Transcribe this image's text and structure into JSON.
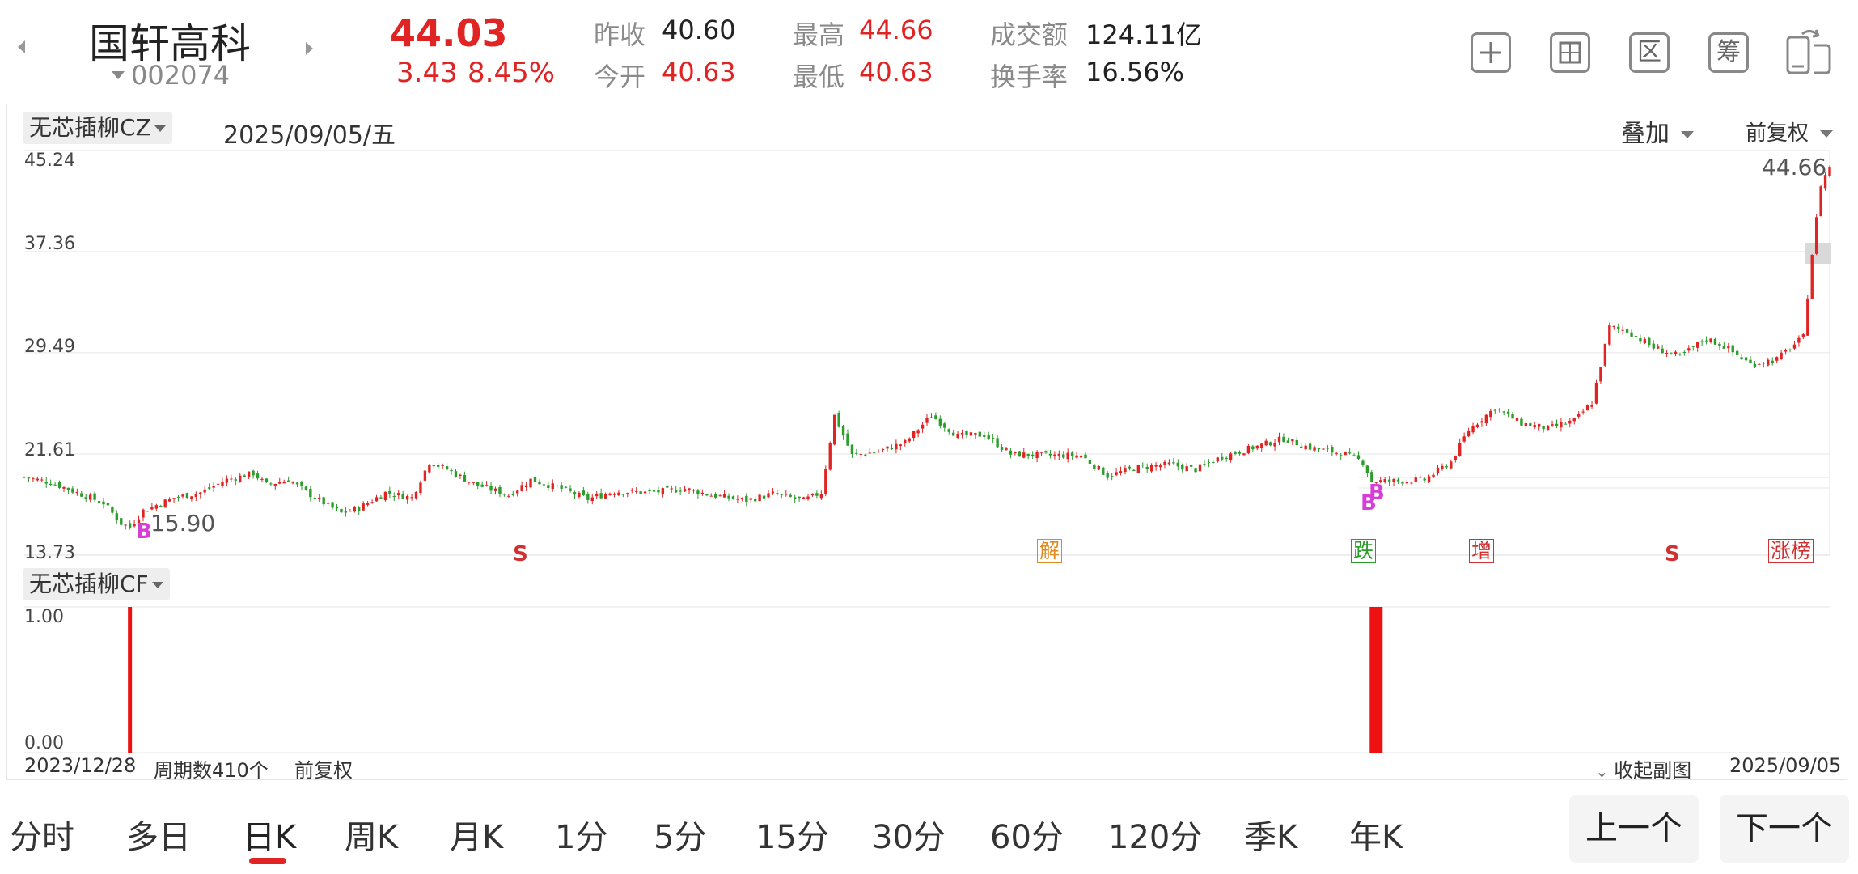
{
  "stock": {
    "name": "国轩高科",
    "code": "002074",
    "price": "44.03",
    "change": "3.43",
    "change_pct": "8.45%",
    "prev_close_label": "昨收",
    "prev_close": "40.60",
    "open_label": "今开",
    "open": "40.63",
    "high_label": "最高",
    "high": "44.66",
    "low_label": "最低",
    "low": "40.63",
    "amount_label": "成交额",
    "amount": "124.11亿",
    "turnover_label": "换手率",
    "turnover": "16.56%"
  },
  "toolbar": {
    "icons": [
      "plus-square-icon",
      "drawing-icon",
      "range-icon",
      "chip-icon",
      "device-switch-icon"
    ],
    "range_glyph": "区",
    "chip_glyph": "筹"
  },
  "main_chart": {
    "indicator": "无芯插柳CZ",
    "date": "2025/09/05/五",
    "overlay_label": "叠加",
    "adjust_label": "前复权",
    "y_ticks": [
      "45.24",
      "37.36",
      "29.49",
      "21.61",
      "13.73"
    ],
    "max_label": "44.66",
    "min_label": "15.90",
    "buy_mark": "B",
    "markers": [
      {
        "text": "S",
        "kind": "signal"
      },
      {
        "text": "解",
        "kind": "event"
      },
      {
        "text": "跌",
        "kind": "event"
      },
      {
        "text": "增",
        "kind": "event"
      },
      {
        "text": "S",
        "kind": "signal"
      },
      {
        "text": "涨榜",
        "kind": "event"
      }
    ]
  },
  "sub_chart": {
    "indicator": "无芯插柳CF",
    "y_ticks": [
      "1.00",
      "0.00"
    ],
    "start_date": "2023/12/28",
    "period_count": "周期数410个",
    "adjust_label": "前复权",
    "collapse_label": "收起副图",
    "end_date": "2025/09/05"
  },
  "chart_data": {
    "type": "candlestick",
    "title": "",
    "x_range": [
      "2023/12/28",
      "2025/09/05"
    ],
    "periods": 410,
    "ylim": [
      13.73,
      45.24
    ],
    "close_path": [
      [
        0,
        19.8
      ],
      [
        6,
        19.4
      ],
      [
        12,
        18.6
      ],
      [
        18,
        17.8
      ],
      [
        22,
        16.2
      ],
      [
        24,
        15.9
      ],
      [
        27,
        17.2
      ],
      [
        34,
        18.2
      ],
      [
        40,
        18.6
      ],
      [
        46,
        19.6
      ],
      [
        52,
        20.1
      ],
      [
        55,
        19.2
      ],
      [
        60,
        19.6
      ],
      [
        66,
        18.2
      ],
      [
        72,
        17.0
      ],
      [
        76,
        17.4
      ],
      [
        82,
        18.6
      ],
      [
        88,
        18.2
      ],
      [
        92,
        21.0
      ],
      [
        96,
        20.4
      ],
      [
        102,
        19.3
      ],
      [
        110,
        18.4
      ],
      [
        115,
        19.6
      ],
      [
        122,
        18.9
      ],
      [
        128,
        18.1
      ],
      [
        134,
        18.7
      ],
      [
        142,
        18.6
      ],
      [
        150,
        18.9
      ],
      [
        156,
        18.4
      ],
      [
        164,
        18.0
      ],
      [
        170,
        18.5
      ],
      [
        177,
        18.0
      ],
      [
        181,
        18.6
      ],
      [
        184,
        24.6
      ],
      [
        188,
        21.5
      ],
      [
        194,
        21.8
      ],
      [
        200,
        22.5
      ],
      [
        206,
        24.6
      ],
      [
        212,
        23.0
      ],
      [
        218,
        23.1
      ],
      [
        224,
        21.6
      ],
      [
        232,
        21.5
      ],
      [
        240,
        21.5
      ],
      [
        246,
        19.9
      ],
      [
        252,
        20.5
      ],
      [
        260,
        20.8
      ],
      [
        266,
        20.4
      ],
      [
        272,
        21.4
      ],
      [
        280,
        22.2
      ],
      [
        286,
        22.8
      ],
      [
        292,
        22.1
      ],
      [
        300,
        21.6
      ],
      [
        304,
        21.0
      ],
      [
        306,
        19.5
      ],
      [
        312,
        19.5
      ],
      [
        318,
        19.6
      ],
      [
        324,
        21.0
      ],
      [
        328,
        23.5
      ],
      [
        334,
        25.2
      ],
      [
        340,
        24.0
      ],
      [
        346,
        23.6
      ],
      [
        352,
        24.2
      ],
      [
        356,
        25.6
      ],
      [
        360,
        31.5
      ],
      [
        364,
        31.2
      ],
      [
        370,
        29.9
      ],
      [
        376,
        29.2
      ],
      [
        382,
        30.6
      ],
      [
        386,
        30.0
      ],
      [
        392,
        28.6
      ],
      [
        398,
        29.0
      ],
      [
        404,
        30.7
      ],
      [
        406,
        37.2
      ],
      [
        408,
        42.6
      ],
      [
        410,
        44.03
      ]
    ],
    "sub_series": {
      "name": "无芯插柳CF",
      "type": "bar",
      "ylim": [
        0,
        1
      ],
      "signals": [
        {
          "index": 24,
          "value": 1
        },
        {
          "index": 307,
          "value": 1
        }
      ]
    }
  },
  "period_tabs": {
    "items": [
      "分时",
      "多日",
      "日K",
      "周K",
      "月K",
      "1分",
      "5分",
      "15分",
      "30分",
      "60分",
      "120分",
      "季K",
      "年K"
    ],
    "active": "日K"
  },
  "nav": {
    "prev": "上一个",
    "next": "下一个"
  },
  "colors": {
    "up": "#e02424",
    "down": "#2a9d2a",
    "buy_mark": "#d63fd6"
  }
}
